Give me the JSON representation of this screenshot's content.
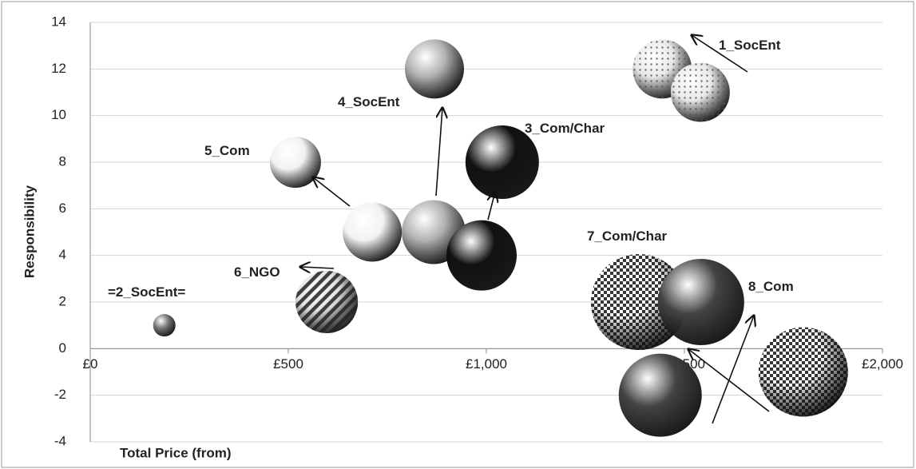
{
  "chart_data": {
    "type": "bubble",
    "xlabel": "Total Price (from)",
    "ylabel": "Responsibility",
    "xlim": [
      0,
      2000
    ],
    "ylim": [
      -4,
      14
    ],
    "xticks": [
      {
        "value": 0,
        "label": "£0"
      },
      {
        "value": 500,
        "label": "£500"
      },
      {
        "value": 1000,
        "label": "£1,000"
      },
      {
        "value": 1500,
        "label": "£1,500"
      },
      {
        "value": 2000,
        "label": "£2,000"
      }
    ],
    "yticks": [
      -4,
      -2,
      0,
      2,
      4,
      6,
      8,
      10,
      12,
      14
    ],
    "grid": true,
    "x": [
      1444,
      1540,
      869,
      1040,
      518,
      712,
      867,
      988,
      597,
      187,
      1385,
      1542,
      1439,
      1800
    ],
    "values": [
      12,
      11,
      12,
      8,
      8,
      5,
      5,
      4,
      2,
      1,
      2,
      2,
      -2,
      -1
    ],
    "sizes": [
      37,
      37,
      37,
      46,
      32,
      37,
      40,
      44,
      39,
      14,
      60,
      54,
      52,
      56
    ],
    "colors": [
      "#e8e8e8",
      "#e8e8e8",
      "#b0b0b0",
      "#111111",
      "#f2f2f2",
      "#f2f2f2",
      "#b0b0b0",
      "#111111",
      "#e0e0e0",
      "#777777",
      "#ffffff",
      "#444444",
      "#444444",
      "#ffffff"
    ],
    "patterns": [
      "dots",
      "dots",
      "none",
      "none",
      "none",
      "none",
      "none",
      "none",
      "stripes",
      "none",
      "checker",
      "none",
      "none",
      "checker"
    ],
    "annotations": [
      "1_SocEnt",
      "4_SocEnt",
      "3_Com/Char",
      "5_Com",
      "6_NGO",
      "=2_SocEnt=",
      "7_Com/Char",
      "8_Com"
    ]
  }
}
